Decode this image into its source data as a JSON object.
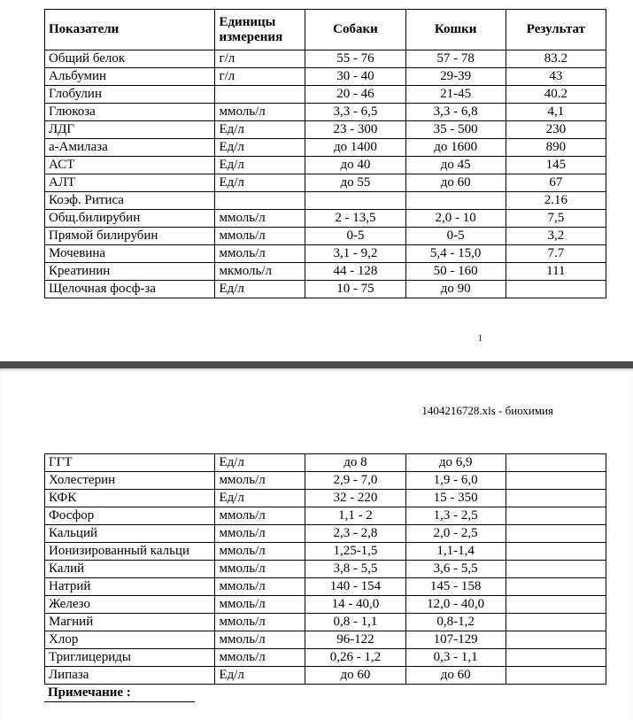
{
  "headers": {
    "indicator": "Показатели",
    "unit": "Единицы измерения",
    "dogs": "Собаки",
    "cats": "Кошки",
    "result": "Результат"
  },
  "page1": {
    "rows": [
      {
        "indicator": "Общий белок",
        "unit": "г/л",
        "dogs": "55 - 76",
        "cats": "57 - 78",
        "result": "83.2"
      },
      {
        "indicator": "Альбумин",
        "unit": "г/л",
        "dogs": "30 - 40",
        "cats": "29-39",
        "result": "43"
      },
      {
        "indicator": "Глобулин",
        "unit": "",
        "dogs": "20 - 46",
        "cats": "21-45",
        "result": "40.2"
      },
      {
        "indicator": "Глюкоза",
        "unit": "ммоль/л",
        "dogs": "3,3 - 6,5",
        "cats": "3,3 - 6,8",
        "result": "4,1"
      },
      {
        "indicator": "ЛДГ",
        "unit": "Ед/л",
        "dogs": "23 - 300",
        "cats": "35 - 500",
        "result": "230"
      },
      {
        "indicator": "а-Амилаза",
        "unit": "Ед/л",
        "dogs": "до 1400",
        "cats": "до 1600",
        "result": "890"
      },
      {
        "indicator": "АСТ",
        "unit": "Ед/л",
        "dogs": "до 40",
        "cats": "до 45",
        "result": "145"
      },
      {
        "indicator": "АЛТ",
        "unit": "Ед/л",
        "dogs": "до 55",
        "cats": "до 60",
        "result": "67"
      },
      {
        "indicator": "Коэф. Ритиса",
        "unit": "",
        "dogs": "",
        "cats": "",
        "result": "2.16"
      },
      {
        "indicator": "Общ.билирубин",
        "unit": "ммоль/л",
        "dogs": "2 - 13,5",
        "cats": "2,0 - 10",
        "result": "7,5"
      },
      {
        "indicator": "Прямой билирубин",
        "unit": "ммоль/л",
        "dogs": "0-5",
        "cats": "0-5",
        "result": "3,2"
      },
      {
        "indicator": "Мочевина",
        "unit": "ммоль/л",
        "dogs": "3,1 - 9,2",
        "cats": "5,4 - 15,0",
        "result": "7.7"
      },
      {
        "indicator": "Креатинин",
        "unit": "мкмоль/л",
        "dogs": "44 - 128",
        "cats": "50 - 160",
        "result": "111"
      },
      {
        "indicator": "Щелочная фосф-за",
        "unit": "Ед/л",
        "dogs": "10 - 75",
        "cats": "до 90",
        "result": ""
      }
    ],
    "pageNumber": "1"
  },
  "page2": {
    "fileLabel": "1404216728.xls - биохимия",
    "rows": [
      {
        "indicator": "ГГТ",
        "unit": "Ед/л",
        "dogs": "до 8",
        "cats": "до 6,9",
        "result": ""
      },
      {
        "indicator": "Холестерин",
        "unit": "ммоль/л",
        "dogs": "2,9 - 7,0",
        "cats": "1,9 - 6,0",
        "result": ""
      },
      {
        "indicator": "КФК",
        "unit": "Ед/л",
        "dogs": "32 - 220",
        "cats": "15 - 350",
        "result": ""
      },
      {
        "indicator": "Фосфор",
        "unit": "ммоль/л",
        "dogs": "1,1 - 2",
        "cats": "1,3 - 2,5",
        "result": ""
      },
      {
        "indicator": "Кальций",
        "unit": "ммоль/л",
        "dogs": "2,3 - 2,8",
        "cats": "2,0 - 2,5",
        "result": ""
      },
      {
        "indicator": "Ионизированный кальци",
        "unit": "ммоль/л",
        "dogs": "1,25-1,5",
        "cats": "1,1-1,4",
        "result": ""
      },
      {
        "indicator": "Калий",
        "unit": "ммоль/л",
        "dogs": "3,8 - 5,5",
        "cats": "3,6 - 5,5",
        "result": ""
      },
      {
        "indicator": "Натрий",
        "unit": "ммоль/л",
        "dogs": "140 - 154",
        "cats": "145 - 158",
        "result": ""
      },
      {
        "indicator": "Железо",
        "unit": "ммоль/л",
        "dogs": "14 - 40,0",
        "cats": "12,0 - 40,0",
        "result": ""
      },
      {
        "indicator": "Магний",
        "unit": "ммоль/л",
        "dogs": "0,8 - 1,1",
        "cats": "0,8-1,2",
        "result": ""
      },
      {
        "indicator": "Хлор",
        "unit": "ммоль/л",
        "dogs": "96-122",
        "cats": "107-129",
        "result": ""
      },
      {
        "indicator": "Триглицериды",
        "unit": "ммоль/л",
        "dogs": "0,26 - 1,2",
        "cats": "0,3 - 1,1",
        "result": ""
      },
      {
        "indicator": "Липаза",
        "unit": "Ед/л",
        "dogs": "до 60",
        "cats": "до 60",
        "result": ""
      }
    ],
    "truncatedLabel": "Примечание :"
  },
  "colors": {
    "pageBg": "#ffffff",
    "gapBg": "#4a4a4a",
    "border": "#000000",
    "text": "#000000"
  }
}
